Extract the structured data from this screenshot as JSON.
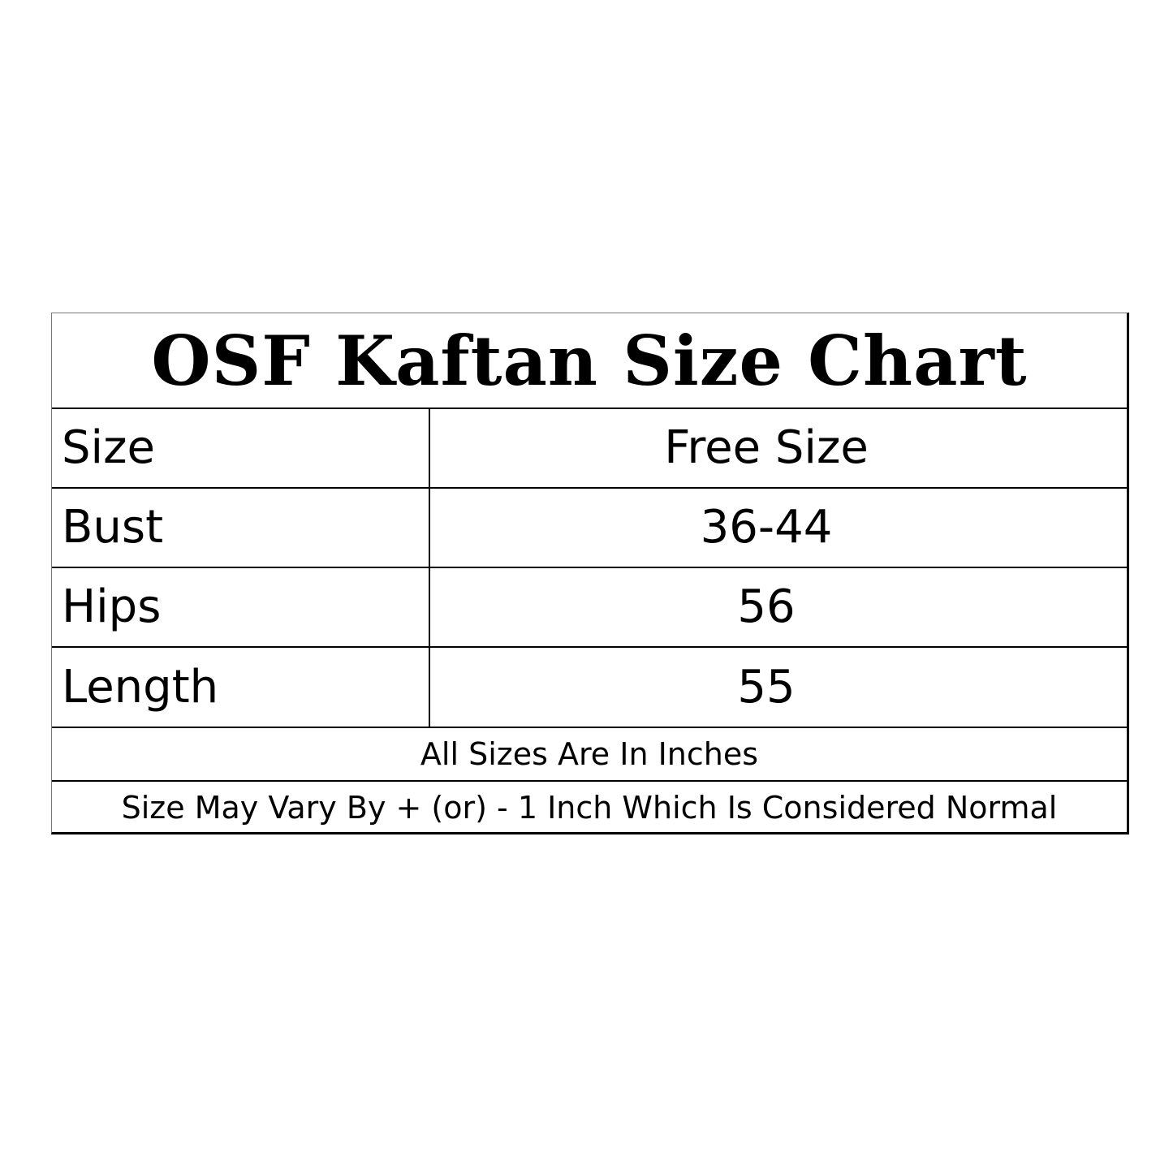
{
  "header": {
    "title": "OSF Kaftan Size Chart"
  },
  "table": {
    "rows": [
      [
        "Size",
        "Free Size"
      ],
      [
        "Bust",
        "36-44"
      ],
      [
        "Hips",
        56
      ],
      [
        "Length",
        55
      ]
    ]
  },
  "notes": [
    "All Sizes Are In Inches",
    "Size May Vary By + (or) - 1 Inch Which Is Considered Normal"
  ]
}
